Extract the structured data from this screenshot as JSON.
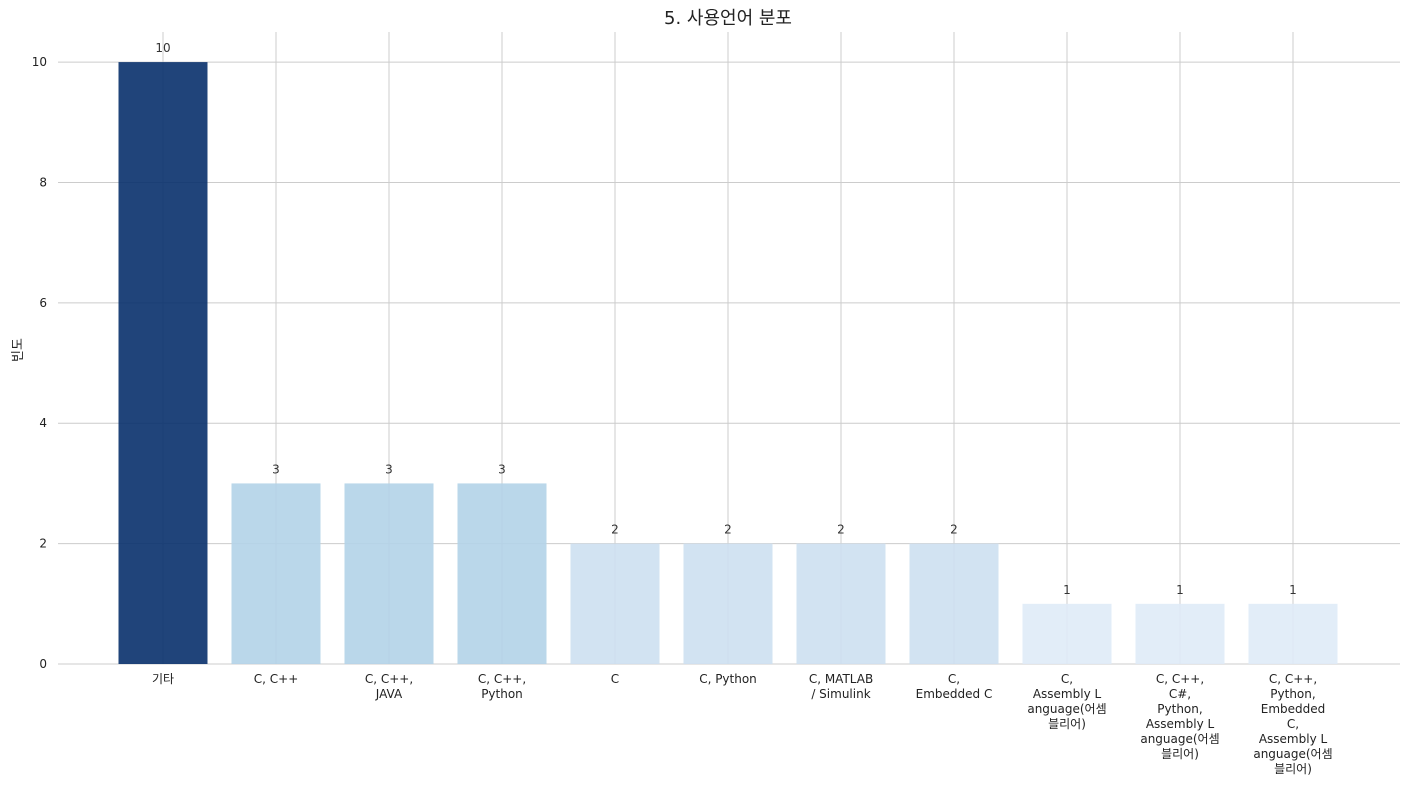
{
  "chart_data": {
    "type": "bar",
    "title": "5. 사용언어 분포",
    "xlabel": "",
    "ylabel": "빈도",
    "ylim": [
      0,
      10.5
    ],
    "yticks": [
      0,
      2,
      4,
      6,
      8,
      10
    ],
    "grid": true,
    "legend": "none",
    "categories": [
      [
        "기타"
      ],
      [
        "C, C++"
      ],
      [
        "C, C++,",
        "JAVA"
      ],
      [
        "C, C++,",
        "Python"
      ],
      [
        "C"
      ],
      [
        "C, Python"
      ],
      [
        "C, MATLAB",
        "/ Simulink"
      ],
      [
        "C,",
        "Embedded C"
      ],
      [
        "C,",
        "Assembly L",
        "anguage(어셈",
        "블리어)"
      ],
      [
        "C, C++,",
        "C#,",
        "Python,",
        "Assembly L",
        "anguage(어셈",
        "블리어)"
      ],
      [
        "C, C++,",
        "Python,",
        "Embedded",
        "C,",
        "Assembly L",
        "anguage(어셈",
        "블리어)"
      ]
    ],
    "values": [
      10,
      3,
      3,
      3,
      2,
      2,
      2,
      2,
      1,
      1,
      1
    ],
    "data_labels": [
      "10",
      "3",
      "3",
      "3",
      "2",
      "2",
      "2",
      "2",
      "1",
      "1",
      "1"
    ],
    "colors": [
      "#08306b",
      "#b3d3e8",
      "#b3d3e8",
      "#b3d3e8",
      "#cde0f1",
      "#cde0f1",
      "#cde0f1",
      "#cde0f1",
      "#dfebf7",
      "#dfebf7",
      "#dfebf7"
    ]
  }
}
